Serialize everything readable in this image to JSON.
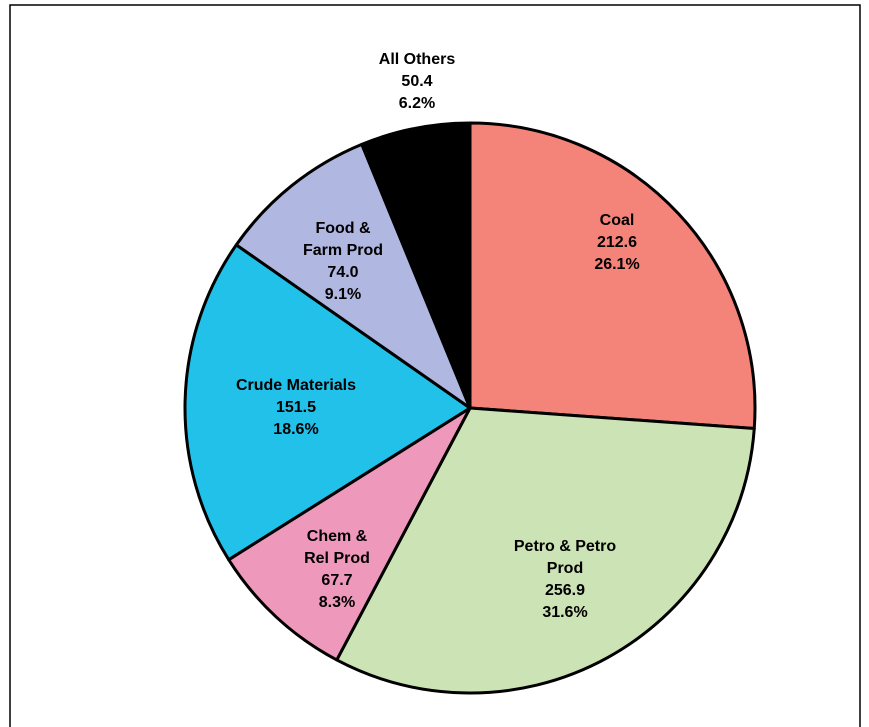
{
  "chart_data": {
    "type": "pie",
    "categories": [
      "Coal",
      "Petro & Petro\nProd",
      "Chem &\nRel Prod",
      "Crude Materials",
      "Food &\nFarm Prod",
      "All Others"
    ],
    "values": [
      212.6,
      256.9,
      67.7,
      151.5,
      74.0,
      50.4
    ],
    "value_labels": [
      "212.6",
      "256.9",
      "67.7",
      "151.5",
      "74.0",
      "50.4"
    ],
    "percent_labels": [
      "26.1%",
      "31.6%",
      "8.3%",
      "18.6%",
      "9.1%",
      "6.2%"
    ],
    "colors": [
      "#f4837a",
      "#cce3b5",
      "#ee98bb",
      "#22c1e9",
      "#b0b7e0",
      "#000000"
    ]
  }
}
